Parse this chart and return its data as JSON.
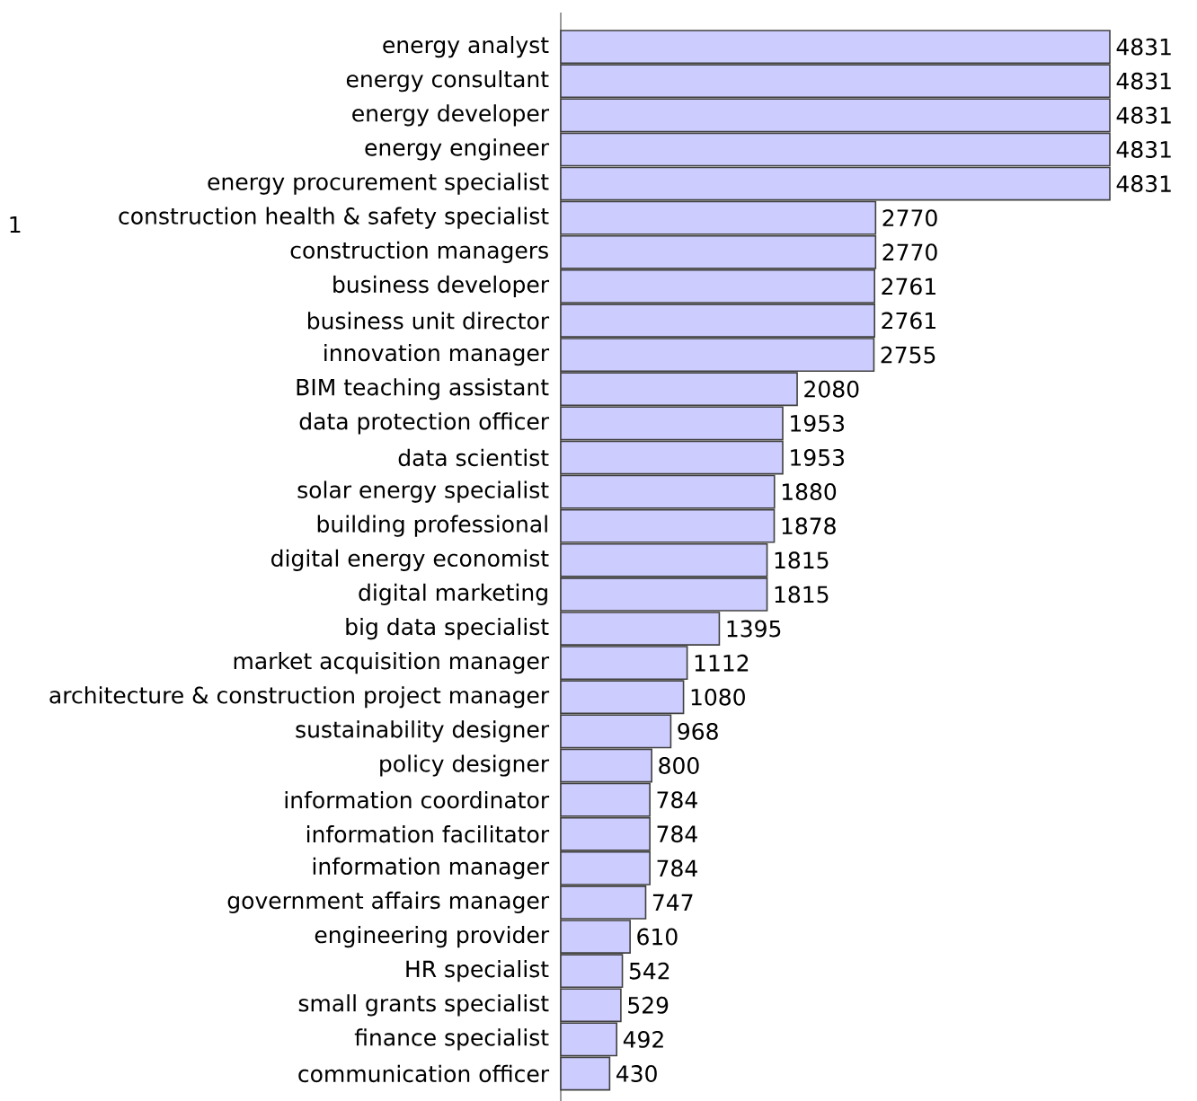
{
  "chart_data": {
    "type": "bar",
    "orientation": "horizontal",
    "data_labels": true,
    "color": "#ccccff",
    "categories": [
      "energy analyst",
      "energy consultant",
      "energy developer",
      "energy engineer",
      "energy procurement specialist",
      "construction health & safety specialist",
      "construction managers",
      "business developer",
      "business unit director",
      "innovation manager",
      "BIM teaching assistant",
      "data protection officer",
      "data scientist",
      "solar energy specialist",
      "building professional",
      "digital energy economist",
      "digital marketing",
      "big data specialist",
      "market acquisition manager",
      "architecture & construction project manager",
      "sustainability designer",
      "policy designer",
      "information coordinator",
      "information facilitator",
      "information manager",
      "government affairs manager",
      "engineering provider",
      "HR specialist",
      "small grants specialist",
      "finance specialist",
      "communication officer"
    ],
    "values": [
      4831,
      4831,
      4831,
      4831,
      4831,
      2770,
      2770,
      2761,
      2761,
      2755,
      2080,
      1953,
      1953,
      1880,
      1878,
      1815,
      1815,
      1395,
      1112,
      1080,
      968,
      800,
      784,
      784,
      784,
      747,
      610,
      542,
      529,
      492,
      430
    ],
    "annotations": [
      "1"
    ]
  }
}
